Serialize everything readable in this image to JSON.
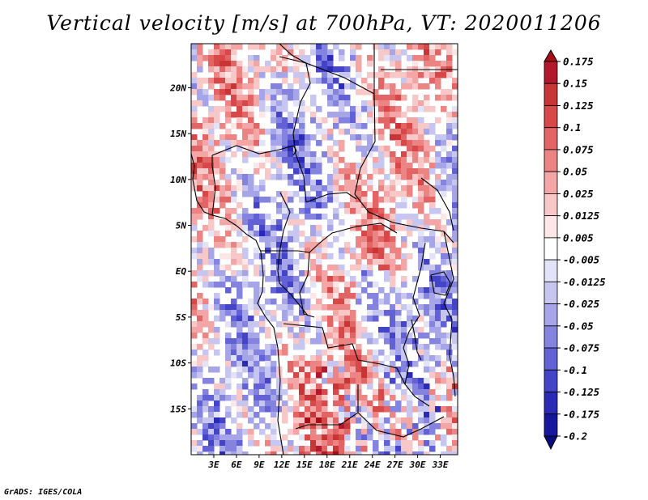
{
  "title": "Vertical velocity [m/s] at 700hPa, VT: 2020011206",
  "credit": "GrADS: IGES/COLA",
  "map": {
    "variable": "Vertical velocity",
    "units": "m/s",
    "level": "700hPa",
    "valid_time": "2020011206",
    "lat_labels": [
      "20N",
      "15N",
      "10N",
      "5N",
      "EQ",
      "5S",
      "10S",
      "15S"
    ],
    "lat_values": [
      20,
      15,
      10,
      5,
      0,
      -5,
      -10,
      -15
    ],
    "lon_labels": [
      "3E",
      "6E",
      "9E",
      "12E",
      "15E",
      "18E",
      "21E",
      "24E",
      "27E",
      "30E",
      "33E"
    ],
    "lon_values": [
      3,
      6,
      9,
      12,
      15,
      18,
      21,
      24,
      27,
      30,
      33
    ],
    "lat_range": [
      -20,
      24.8
    ],
    "lon_range": [
      0,
      35.3
    ]
  },
  "colorbar": {
    "labels": [
      "0.175",
      "0.15",
      "0.125",
      "0.1",
      "0.075",
      "0.05",
      "0.025",
      "0.0125",
      "0.005",
      "-0.005",
      "-0.0125",
      "-0.025",
      "-0.05",
      "-0.075",
      "-0.1",
      "-0.125",
      "-0.175",
      "-0.2"
    ],
    "colors": [
      "#a50f15",
      "#b2182b",
      "#c83535",
      "#d94848",
      "#e36464",
      "#ec8484",
      "#f4a6a6",
      "#f8c8c8",
      "#fde6e6",
      "#ffffff",
      "#e3e3f7",
      "#c6c6f0",
      "#a5a5e8",
      "#8484e0",
      "#6262d6",
      "#4444c8",
      "#2a2ab6",
      "#17179e",
      "#0b0b80"
    ]
  }
}
